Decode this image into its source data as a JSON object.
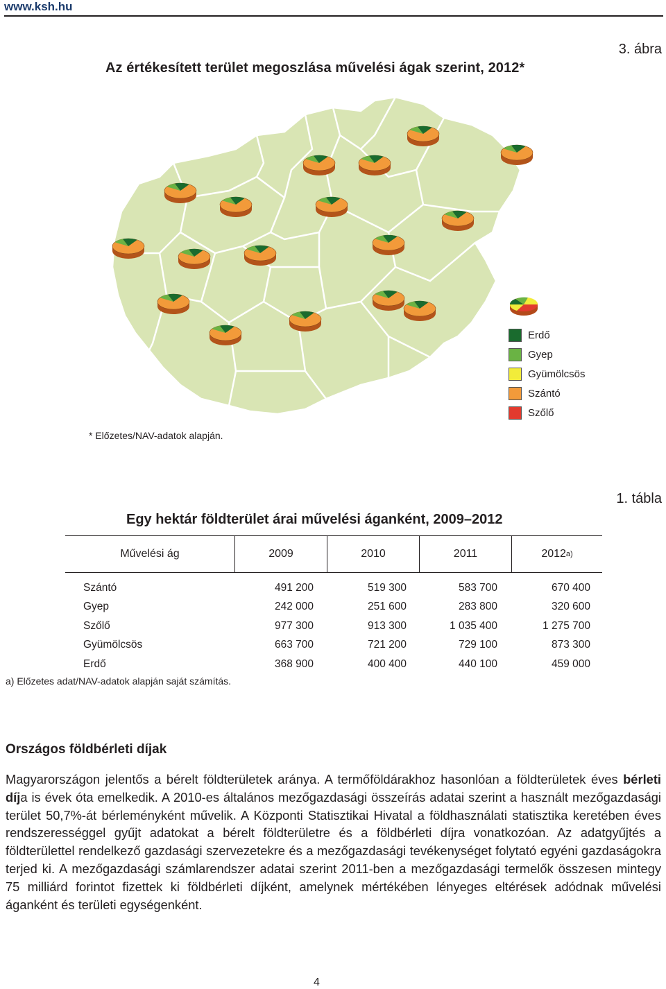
{
  "header": {
    "site": "www.ksh.hu"
  },
  "figure": {
    "label": "3. ábra",
    "title": "Az értékesített terület megoszlása művelési ágak szerint, 2012*",
    "note": "* Előzetes/NAV-adatok alapján.",
    "legend": [
      {
        "label": "Erdő",
        "color": "#1a6b2e"
      },
      {
        "label": "Gyep",
        "color": "#6ab344"
      },
      {
        "label": "Gyümölcsös",
        "color": "#f2ec3a"
      },
      {
        "label": "Szántó",
        "color": "#f29a3a"
      },
      {
        "label": "Szőlő",
        "color": "#e23a2e"
      }
    ],
    "map_fill": "#d9e5b4"
  },
  "table": {
    "label": "1. tábla",
    "title": "Egy hektár földterület árai művelési áganként, 2009–2012",
    "headers": [
      "Művelési ág",
      "2009",
      "2010",
      "2011",
      "2012"
    ],
    "header_sup": "a)",
    "rows": [
      {
        "name": "Szántó",
        "values": [
          "491 200",
          "519 300",
          "583 700",
          "670 400"
        ]
      },
      {
        "name": "Gyep",
        "values": [
          "242 000",
          "251 600",
          "283 800",
          "320 600"
        ]
      },
      {
        "name": "Szőlő",
        "values": [
          "977 300",
          "913 300",
          "1 035 400",
          "1 275 700"
        ]
      },
      {
        "name": "Gyümölcsös",
        "values": [
          "663 700",
          "721 200",
          "729 100",
          "873 300"
        ]
      },
      {
        "name": "Erdő",
        "values": [
          "368 900",
          "400 400",
          "440 100",
          "459 000"
        ]
      }
    ],
    "note": "a) Előzetes adat/NAV-adatok alapján saját számítás."
  },
  "section": {
    "title": "Országos földbérleti díjak",
    "p1": "Magyarországon jelentős a bérelt földterületek aránya. A termőföldárakhoz hasonlóan a földterületek éves ",
    "p1_bold_a": "bérleti díj",
    "p1_b": "a is évek óta emelkedik. A 2010-es általános mezőgazdasági összeírás adatai szerint a használt mezőgazdasági terület 50,7%-át bérleményként művelik. A Központi Statisztikai Hivatal a földhasználati statisztika keretében éves rendszerességgel gyűjt adatokat a bérelt földterületre és a földbérleti díjra vonatkozóan. Az adatgyűjtés a földterülettel rendelkező gazdasági szervezetekre és a mezőgazdasági tevékenységet folytató egyéni gazdaságokra terjed ki. A mezőgazdasági számlarendszer adatai szerint 2011-ben a mezőgazdasági termelők összesen mintegy 75 milliárd forintot fizettek ki földbérleti díjként, amelynek mértékében lényeges eltérések adódnak művelési áganként és területi egységenként."
  },
  "footer": {
    "page": "4"
  }
}
